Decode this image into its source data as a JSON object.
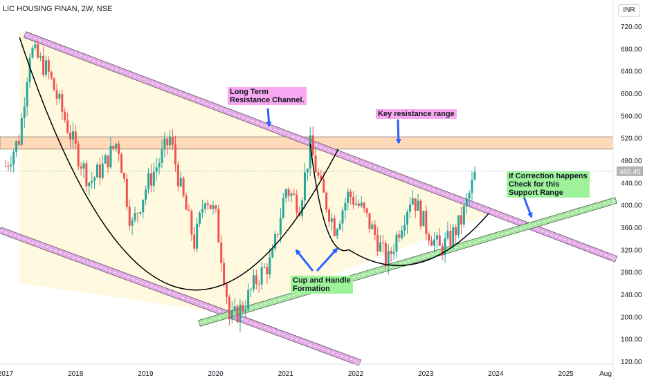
{
  "header": {
    "symbol_title": "LIC HOUSING FINAN, 2W, NSE",
    "currency": "INR"
  },
  "chart_data": {
    "type": "candlestick",
    "title": "LIC HOUSING FINAN, 2W, NSE",
    "y_ticks": [
      "720.00",
      "680.00",
      "640.00",
      "600.00",
      "560.00",
      "520.00",
      "480.00",
      "440.00",
      "400.00",
      "360.00",
      "320.00",
      "280.00",
      "240.00",
      "200.00",
      "160.00",
      "120.00"
    ],
    "x_ticks": [
      "2017",
      "2018",
      "2019",
      "2020",
      "2021",
      "2022",
      "2023",
      "2024",
      "2025",
      "Aug"
    ],
    "ylim": [
      120,
      740
    ],
    "last_price": 460.45,
    "last_price_label": "460.45",
    "price_series": [
      {
        "date": "2017.0",
        "close": 470
      },
      {
        "date": "2017.2",
        "close": 520
      },
      {
        "date": "2017.35",
        "close": 680
      },
      {
        "date": "2017.6",
        "close": 640
      },
      {
        "date": "2017.8",
        "close": 570
      },
      {
        "date": "2018.0",
        "close": 500
      },
      {
        "date": "2018.2",
        "close": 440
      },
      {
        "date": "2018.4",
        "close": 470
      },
      {
        "date": "2018.6",
        "close": 515
      },
      {
        "date": "2018.8",
        "close": 360
      },
      {
        "date": "2019.0",
        "close": 430
      },
      {
        "date": "2019.2",
        "close": 480
      },
      {
        "date": "2019.35",
        "close": 520
      },
      {
        "date": "2019.5",
        "close": 430
      },
      {
        "date": "2019.7",
        "close": 330
      },
      {
        "date": "2019.85",
        "close": 420
      },
      {
        "date": "2020.0",
        "close": 380
      },
      {
        "date": "2020.15",
        "close": 250
      },
      {
        "date": "2020.2",
        "close": 190
      },
      {
        "date": "2020.4",
        "close": 220
      },
      {
        "date": "2020.6",
        "close": 270
      },
      {
        "date": "2020.8",
        "close": 300
      },
      {
        "date": "2021.0",
        "close": 430
      },
      {
        "date": "2021.2",
        "close": 400
      },
      {
        "date": "2021.35",
        "close": 505
      },
      {
        "date": "2021.5",
        "close": 430
      },
      {
        "date": "2021.7",
        "close": 360
      },
      {
        "date": "2021.9",
        "close": 420
      },
      {
        "date": "2022.1",
        "close": 390
      },
      {
        "date": "2022.3",
        "close": 340
      },
      {
        "date": "2022.45",
        "close": 295
      },
      {
        "date": "2022.6",
        "close": 350
      },
      {
        "date": "2022.8",
        "close": 420
      },
      {
        "date": "2023.0",
        "close": 360
      },
      {
        "date": "2023.2",
        "close": 320
      },
      {
        "date": "2023.35",
        "close": 340
      },
      {
        "date": "2023.5",
        "close": 370
      },
      {
        "date": "2023.6",
        "close": 410
      },
      {
        "date": "2023.72",
        "close": 460
      }
    ],
    "annotations": [
      {
        "name": "long-term-resistance",
        "lines": [
          "Long Term",
          "Resistance Channel."
        ],
        "style": "pink"
      },
      {
        "name": "key-resistance",
        "lines": [
          "Key resistance range"
        ],
        "style": "pink"
      },
      {
        "name": "support-range",
        "lines": [
          "If Correction happens",
          "Check for this",
          "Support Range"
        ],
        "style": "green"
      },
      {
        "name": "cup-handle",
        "lines": [
          "Cup and Handle",
          "Formation"
        ],
        "style": "green"
      }
    ],
    "colors": {
      "up": "#26a69a",
      "down": "#ef5350",
      "resistance_channel": "#e2a8e6",
      "support_channel": "#a5e6a1",
      "key_zone": "#ffd9b8",
      "triangle_fill": "#fff8dc",
      "arrow": "#2962ff",
      "last_price_bg": "#b3b3b3"
    }
  }
}
